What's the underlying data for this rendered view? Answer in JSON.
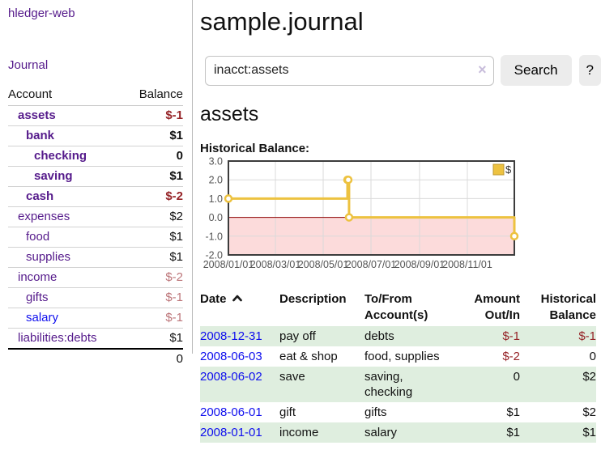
{
  "sidebar": {
    "brand": "hledger-web",
    "journal_link": "Journal",
    "accounts": {
      "headers": {
        "account": "Account",
        "balance": "Balance"
      },
      "rows": [
        {
          "name": "assets",
          "balance": "$-1"
        },
        {
          "name": "bank",
          "balance": "$1"
        },
        {
          "name": "checking",
          "balance": "0"
        },
        {
          "name": "saving",
          "balance": "$1"
        },
        {
          "name": "cash",
          "balance": "$-2"
        },
        {
          "name": "expenses",
          "balance": "$2"
        },
        {
          "name": "food",
          "balance": "$1"
        },
        {
          "name": "supplies",
          "balance": "$1"
        },
        {
          "name": "income",
          "balance": "$-2"
        },
        {
          "name": "gifts",
          "balance": "$-1"
        },
        {
          "name": "salary",
          "balance": "$-1"
        },
        {
          "name": "liabilities:debts",
          "balance": "$1"
        }
      ],
      "total": "0"
    }
  },
  "main": {
    "title": "sample.journal",
    "search": {
      "value": "inacct:assets",
      "clear_icon": "×",
      "search_button": "Search",
      "help_button": "?"
    },
    "section_heading": "assets",
    "chart_title": "Historical Balance:"
  },
  "chart_data": {
    "type": "line",
    "step": true,
    "title": "Historical Balance",
    "series": [
      {
        "name": "$",
        "color": "#EDC240",
        "points": [
          [
            "2008-01-01",
            1
          ],
          [
            "2008-06-01",
            2
          ],
          [
            "2008-06-02",
            2
          ],
          [
            "2008-06-03",
            0
          ],
          [
            "2008-12-31",
            -1
          ]
        ]
      }
    ],
    "xlim": [
      "2008-01-01",
      "2008-12-31"
    ],
    "ylim": [
      -2,
      3
    ],
    "x_ticks": [
      "2008/01/01",
      "2008/03/01",
      "2008/05/01",
      "2008/07/01",
      "2008/09/01",
      "2008/11/01"
    ],
    "y_ticks": [
      3,
      2,
      1,
      0,
      -1,
      -2
    ],
    "grid": true,
    "legend_position": "top-right",
    "negative_region_color": "#fcdbdb",
    "zero_line_color": "#8b0000"
  },
  "register": {
    "headers": {
      "date": "Date",
      "description": "Description",
      "account_line1": "To/From",
      "account_line2": "Account(s)",
      "amount_line1": "Amount",
      "amount_line2": "Out/In",
      "balance_line1": "Historical",
      "balance_line2": "Balance"
    },
    "rows": [
      {
        "date": "2008-12-31",
        "description": "pay off",
        "accounts": "debts",
        "amount": "$-1",
        "balance": "$-1"
      },
      {
        "date": "2008-06-03",
        "description": "eat & shop",
        "accounts": "food, supplies",
        "amount": "$-2",
        "balance": "0"
      },
      {
        "date": "2008-06-02",
        "description": "save",
        "accounts": "saving,\nchecking",
        "amount": "0",
        "balance": "$2"
      },
      {
        "date": "2008-06-01",
        "description": "gift",
        "accounts": "gifts",
        "amount": "$1",
        "balance": "$2"
      },
      {
        "date": "2008-01-01",
        "description": "income",
        "accounts": "salary",
        "amount": "$1",
        "balance": "$1"
      }
    ]
  },
  "colors": {
    "link_purple": "#551a8b",
    "link_blue": "#0f0fee",
    "negative_red": "#962428",
    "negative_soft_red": "#bc7478",
    "row_stripe_green": "#dfeedf",
    "series_gold": "#EDC240",
    "negative_region_pink": "#fcdbdb",
    "zero_line_red": "#8b0000"
  }
}
